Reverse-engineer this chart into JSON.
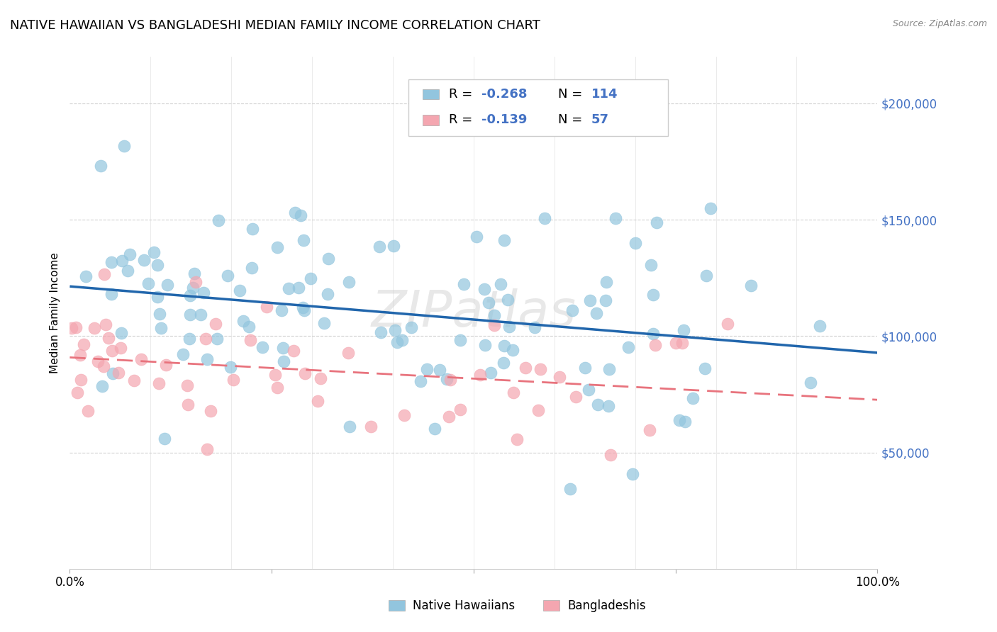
{
  "title": "NATIVE HAWAIIAN VS BANGLADESHI MEDIAN FAMILY INCOME CORRELATION CHART",
  "source": "Source: ZipAtlas.com",
  "ylabel": "Median Family Income",
  "ytick_labels": [
    "$50,000",
    "$100,000",
    "$150,000",
    "$200,000"
  ],
  "ytick_values": [
    50000,
    100000,
    150000,
    200000
  ],
  "ylim": [
    0,
    220000
  ],
  "xlim": [
    0.0,
    1.0
  ],
  "watermark": "ZIPatlas",
  "blue_color": "#92c5de",
  "pink_color": "#f4a6b0",
  "blue_line_color": "#2166ac",
  "pink_line_color": "#e8737d",
  "background_color": "#ffffff",
  "grid_color": "#d0d0d0",
  "native_hawaiian_N": 114,
  "bangladeshi_N": 57,
  "title_fontsize": 13,
  "axis_label_fontsize": 11,
  "tick_fontsize": 11,
  "legend_R_color": "#4472c4",
  "blue_intercept": 120000,
  "blue_slope": -28000,
  "pink_intercept": 92000,
  "pink_slope": -18000
}
